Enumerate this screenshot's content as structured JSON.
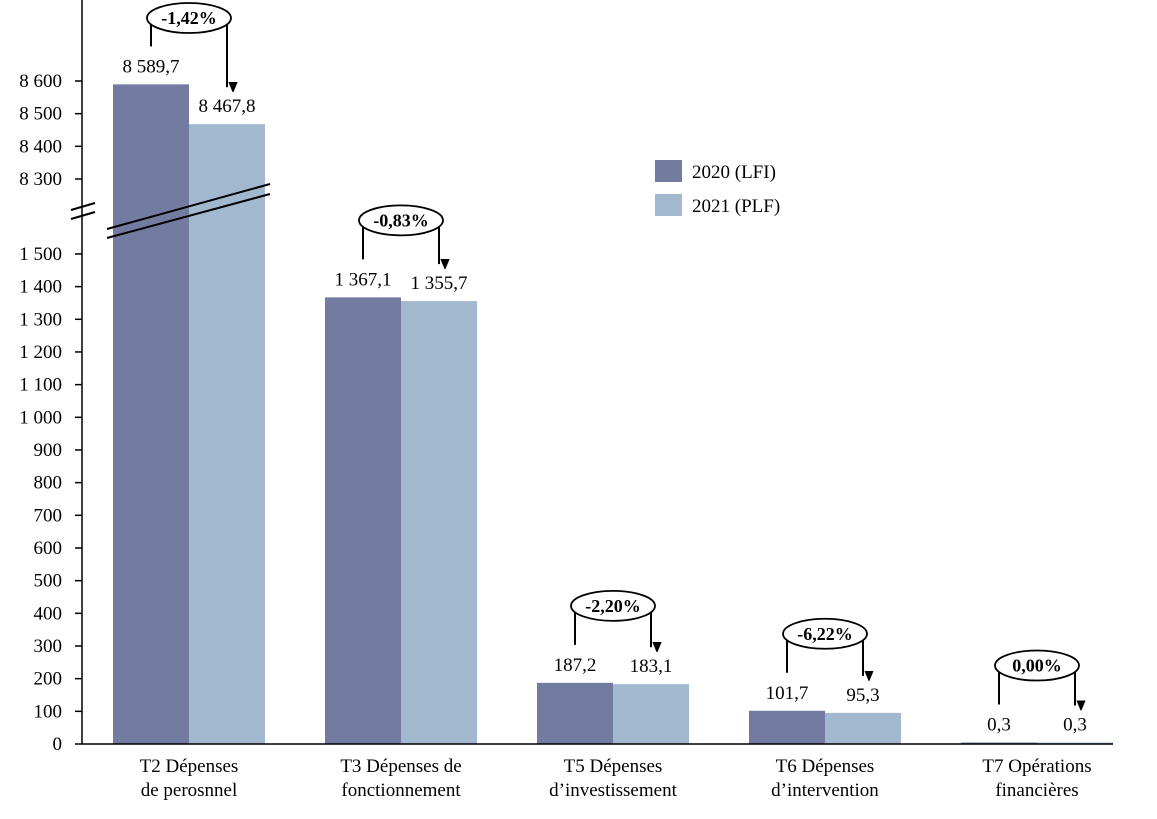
{
  "chart_data": {
    "type": "bar",
    "categories": [
      [
        "T2 Dépenses",
        "de perosnnel"
      ],
      [
        "T3 Dépenses de",
        "fonctionnement"
      ],
      [
        "T5 Dépenses",
        "d’investissement"
      ],
      [
        "T6 Dépenses",
        "d’intervention"
      ],
      [
        "T7 Opérations",
        "financières"
      ]
    ],
    "series": [
      {
        "name": "2020 (LFI)",
        "color": "#737ba0",
        "values": [
          8589.7,
          1367.1,
          187.2,
          101.7,
          0.3
        ],
        "labels": [
          "8 589,7",
          "1 367,1",
          "187,2",
          "101,7",
          "0,3"
        ]
      },
      {
        "name": "2021 (PLF)",
        "color": "#a1b8cf",
        "values": [
          8467.8,
          1355.7,
          183.1,
          95.3,
          0.3
        ],
        "labels": [
          "8 467,8",
          "1 355,7",
          "183,1",
          "95,3",
          "0,3"
        ]
      }
    ],
    "changes": [
      "-1,42%",
      "-0,83%",
      "-2,20%",
      "-6,22%",
      "0,00%"
    ],
    "y_axis": {
      "broken": true,
      "lower_range": [
        0,
        1500
      ],
      "upper_range": [
        8300,
        8600
      ],
      "lower_ticks": [
        0,
        100,
        200,
        300,
        400,
        500,
        600,
        700,
        800,
        900,
        1000,
        1100,
        1200,
        1300,
        1400,
        1500
      ],
      "lower_tick_labels": [
        "0",
        "100",
        "200",
        "300",
        "400",
        "500",
        "600",
        "700",
        "800",
        "900",
        "1 000",
        "1 100",
        "1 200",
        "1 300",
        "1 400",
        "1 500"
      ],
      "upper_ticks": [
        8300,
        8400,
        8500,
        8600
      ],
      "upper_tick_labels": [
        "8 300",
        "8 400",
        "8 500",
        "8 600"
      ]
    },
    "legend_position": "top-right",
    "grid": false
  }
}
